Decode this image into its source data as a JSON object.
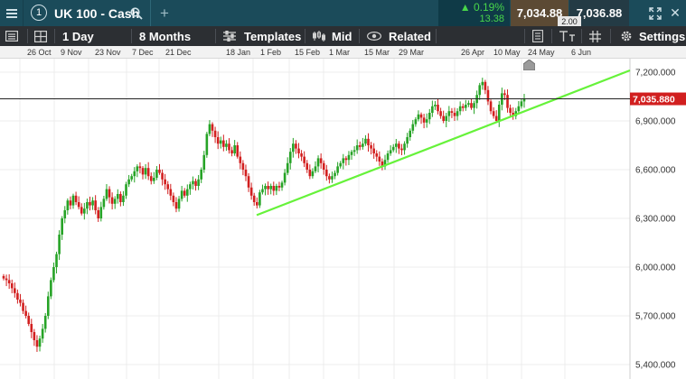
{
  "header": {
    "menu_icon": "hamburger-icon",
    "panel_number": "1",
    "instrument": "UK 100 - Cash",
    "search_icon": "search-icon",
    "add_icon": "plus-icon",
    "change_percent": "0.19%",
    "change_points": "13.38",
    "change_direction": "up",
    "bid": "7,034.88",
    "spread": "2.00",
    "ask": "7,036.88",
    "expand_icon": "expand-icon",
    "close_icon": "close-icon",
    "colors": {
      "header_bg": "#1b4b5a",
      "positive": "#48d64a",
      "bid_bg": "#5c4a34",
      "ask_bg": "#243b45"
    }
  },
  "toolbar": {
    "interval": "1 Day",
    "range": "8 Months",
    "templates": "Templates",
    "price_type": "Mid",
    "related": "Related",
    "settings": "Settings",
    "icons": [
      "sidebar-icon",
      "layout-icon",
      "templates-icon",
      "candles-icon",
      "eye-icon",
      "notes-icon",
      "text-icon",
      "grid-icon",
      "gear-icon"
    ]
  },
  "time_axis": {
    "labels": [
      "26 Oct",
      "9 Nov",
      "23 Nov",
      "7 Dec",
      "21 Dec",
      "18 Jan",
      "1 Feb",
      "15 Feb",
      "1 Mar",
      "15 Mar",
      "29 Mar",
      "26 Apr",
      "10 May",
      "24 May",
      "6 Jun"
    ]
  },
  "chart_data": {
    "type": "candlestick",
    "y_ticks": [
      "7,200.000",
      "6,900.000",
      "6,600.000",
      "6,300.000",
      "6,000.000",
      "5,700.000",
      "5,400.000"
    ],
    "ylim": [
      5400,
      7200
    ],
    "current_price": "7,035.880",
    "current_price_value": 7035.88,
    "colors": {
      "up": "#26a326",
      "down": "#d21f1f",
      "trendline": "#66f23a",
      "current_price": "#d11f1f"
    },
    "trendline": {
      "from": {
        "x": "1 Feb",
        "y": 6320
      },
      "to": {
        "x": "6 Jun",
        "y": 7200
      }
    },
    "closes": [
      5930,
      5920,
      5900,
      5870,
      5840,
      5800,
      5780,
      5730,
      5700,
      5650,
      5600,
      5550,
      5510,
      5560,
      5620,
      5700,
      5820,
      5920,
      6000,
      6080,
      6200,
      6300,
      6350,
      6410,
      6380,
      6440,
      6400,
      6370,
      6330,
      6360,
      6400,
      6380,
      6410,
      6350,
      6300,
      6370,
      6420,
      6480,
      6430,
      6390,
      6420,
      6450,
      6400,
      6440,
      6510,
      6540,
      6560,
      6590,
      6620,
      6610,
      6570,
      6610,
      6560,
      6530,
      6550,
      6600,
      6580,
      6540,
      6510,
      6480,
      6440,
      6400,
      6360,
      6420,
      6470,
      6440,
      6480,
      6510,
      6530,
      6500,
      6540,
      6600,
      6690,
      6820,
      6880,
      6840,
      6800,
      6760,
      6780,
      6740,
      6760,
      6720,
      6700,
      6750,
      6680,
      6640,
      6600,
      6560,
      6490,
      6440,
      6400,
      6380,
      6460,
      6480,
      6500,
      6480,
      6500,
      6470,
      6500,
      6490,
      6520,
      6580,
      6640,
      6710,
      6760,
      6730,
      6700,
      6680,
      6640,
      6600,
      6560,
      6590,
      6620,
      6670,
      6640,
      6600,
      6560,
      6540,
      6560,
      6580,
      6620,
      6640,
      6670,
      6660,
      6690,
      6710,
      6720,
      6750,
      6740,
      6760,
      6790,
      6750,
      6730,
      6700,
      6680,
      6650,
      6620,
      6660,
      6700,
      6720,
      6740,
      6760,
      6730,
      6720,
      6760,
      6800,
      6840,
      6880,
      6910,
      6940,
      6920,
      6890,
      6910,
      6950,
      6990,
      7000,
      6960,
      6930,
      6900,
      6930,
      6960,
      6950,
      6930,
      6960,
      6990,
      6980,
      7000,
      7010,
      6980,
      7010,
      7060,
      7120,
      7140,
      7090,
      7020,
      6960,
      6930,
      6900,
      7000,
      7070,
      7060,
      6980,
      6950,
      6930,
      6960,
      6990,
      7020,
      7036
    ]
  }
}
